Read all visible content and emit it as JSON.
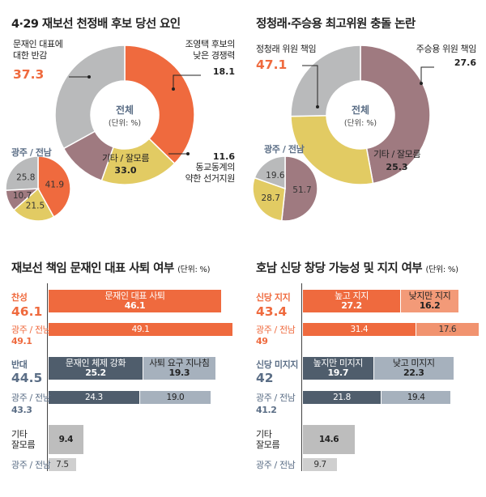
{
  "chart_data": [
    {
      "type": "pie",
      "title": "4·29 재보선 천정배 후보 당선 요인",
      "center_label": "전체",
      "center_unit": "(단위: %)",
      "labels": [
        "문재인 대표에 대한 반감",
        "조영택 후보의 낮은 경쟁력",
        "동교동계의 약한 선거지원",
        "기타 / 잘모름"
      ],
      "values": [
        37.3,
        18.1,
        11.6,
        33.0
      ],
      "colors": [
        "#ef6a3e",
        "#e2cb63",
        "#9f7a80",
        "#b9babb"
      ],
      "inset": {
        "label": "광주 / 전남",
        "values": [
          41.9,
          21.5,
          10.7,
          25.8
        ]
      }
    },
    {
      "type": "pie",
      "title": "정청래·주승용 최고위원 충돌 논란",
      "center_label": "전체",
      "center_unit": "(단위: %)",
      "labels": [
        "정청래 위원 책임",
        "주승용 위원 책임",
        "기타 / 잘모름"
      ],
      "values": [
        47.1,
        27.6,
        25.3
      ],
      "colors": [
        "#9f7a80",
        "#e2cb63",
        "#b9babb"
      ],
      "inset": {
        "label": "광주 / 전남",
        "values": [
          51.7,
          28.7,
          19.6
        ]
      }
    },
    {
      "type": "bar",
      "title": "재보선 책임 문재인 대표 사퇴 여부",
      "unit": "(단위: %)",
      "groups": [
        {
          "label": "찬성",
          "total": 46.1,
          "segments": [
            {
              "name": "문재인 대표 사퇴",
              "value": 46.1
            }
          ],
          "region": {
            "label": "광주 / 전남",
            "total": 49.1,
            "values": [
              49.1
            ]
          }
        },
        {
          "label": "반대",
          "total": 44.5,
          "segments": [
            {
              "name": "문재인 체제 강화",
              "value": 25.2
            },
            {
              "name": "사퇴 요구 지나침",
              "value": 19.3
            }
          ],
          "region": {
            "label": "광주 / 전남",
            "total": 43.3,
            "values": [
              24.3,
              19.0
            ]
          }
        },
        {
          "label": "기타 잘모름",
          "total": 9.4,
          "segments": [
            {
              "name": "",
              "value": 9.4
            }
          ],
          "region": {
            "label": "광주 / 전남",
            "values": [
              7.5
            ]
          }
        }
      ]
    },
    {
      "type": "bar",
      "title": "호남 신당 창당 가능성 및 지지 여부",
      "unit": "(단위: %)",
      "groups": [
        {
          "label": "신당 지지",
          "total": 43.4,
          "segments": [
            {
              "name": "높고 지지",
              "value": 27.2
            },
            {
              "name": "낮지만 지지",
              "value": 16.2
            }
          ],
          "region": {
            "label": "광주 / 전남",
            "total": 49.0,
            "values": [
              31.4,
              17.6
            ]
          }
        },
        {
          "label": "신당 미지지",
          "total": 42.0,
          "segments": [
            {
              "name": "높지만 미지지",
              "value": 19.7
            },
            {
              "name": "낮고 미지지",
              "value": 22.3
            }
          ],
          "region": {
            "label": "광주 / 전남",
            "total": 41.2,
            "values": [
              21.8,
              19.4
            ]
          }
        },
        {
          "label": "기타 잘모름",
          "total": 14.6,
          "segments": [
            {
              "name": "",
              "value": 14.6
            }
          ],
          "region": {
            "label": "광주 / 전남",
            "values": [
              9.7
            ]
          }
        }
      ]
    }
  ],
  "text": {
    "c1_label_a1": "문재인 대표에",
    "c1_label_a2": "대한 반감",
    "c1_label_a_val": "37.3",
    "c1_label_b1": "조영택 후보의",
    "c1_label_b2": "낮은 경쟁력",
    "c1_label_b_val": "18.1",
    "c1_label_c_val": "11.6",
    "c1_label_c1": "동교동계의",
    "c1_label_c2": "약한 선거지원",
    "c1_label_d": "기타 / 잘모름",
    "c1_label_d_val": "33.0",
    "c2_label_a": "정청래 위원 책임",
    "c2_label_a_val": "47.1",
    "c2_label_b": "주승용 위원 책임",
    "c2_label_b_val": "27.6",
    "c2_label_c": "기타 / 잘모름",
    "c2_label_c_val": "25.3",
    "c3_other_1": "기타",
    "c3_other_2": "잘모름",
    "c4_other_1": "기타",
    "c4_other_2": "잘모름"
  }
}
